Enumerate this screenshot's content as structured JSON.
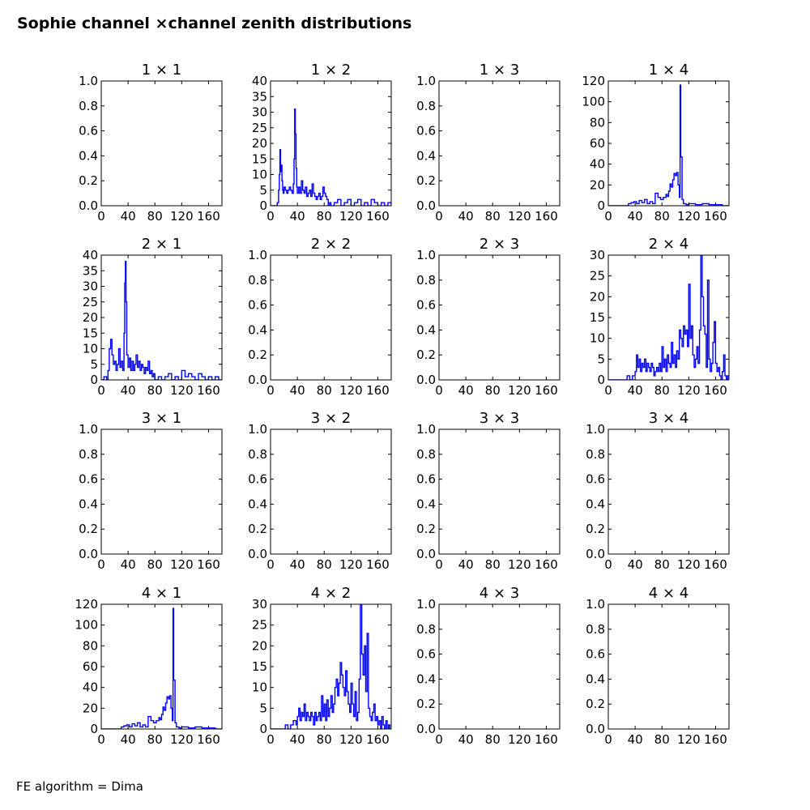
{
  "figure": {
    "title": "Sophie channel ×channel zenith distributions",
    "footer": "FE algorithm = Dima"
  },
  "chart_data": [
    {
      "title": "1 × 1",
      "type": "line",
      "step": true,
      "xlim": [
        0,
        180
      ],
      "ylim": [
        0,
        1
      ],
      "xticks": [
        0,
        40,
        80,
        120,
        160
      ],
      "yticks": [
        "0.0",
        "0.2",
        "0.4",
        "0.6",
        "0.8",
        "1.0"
      ],
      "series": []
    },
    {
      "title": "1 × 2",
      "type": "line",
      "step": true,
      "xlim": [
        0,
        180
      ],
      "ylim": [
        0,
        40
      ],
      "xticks": [
        0,
        40,
        80,
        120,
        160
      ],
      "yticks": [
        "0",
        "5",
        "10",
        "15",
        "20",
        "25",
        "30",
        "35",
        "40"
      ],
      "series": [
        {
          "color": "#0000ff",
          "x": [
            0,
            10,
            12,
            13,
            14,
            15,
            16,
            17,
            18,
            19,
            20,
            22,
            24,
            26,
            28,
            30,
            32,
            34,
            35,
            36,
            37,
            38,
            39,
            40,
            42,
            44,
            46,
            48,
            50,
            52,
            54,
            56,
            58,
            60,
            62,
            64,
            66,
            68,
            70,
            72,
            74,
            76,
            78,
            80,
            82,
            84,
            86,
            88,
            90,
            95,
            100,
            105,
            110,
            115,
            120,
            125,
            130,
            135,
            140,
            145,
            150,
            155,
            160,
            165,
            170,
            175,
            180
          ],
          "y": [
            0,
            1,
            5,
            10,
            18,
            11,
            13,
            8,
            5,
            4,
            6,
            5,
            4,
            5,
            6,
            5,
            4,
            7,
            15,
            31,
            23,
            12,
            6,
            4,
            6,
            4,
            8,
            5,
            4,
            6,
            3,
            4,
            5,
            3,
            7,
            4,
            3,
            2,
            3,
            4,
            2,
            3,
            6,
            4,
            3,
            2,
            0,
            1,
            0,
            1,
            2,
            0,
            1,
            2,
            0,
            1,
            2,
            0,
            1,
            0,
            2,
            1,
            0,
            1,
            0,
            1,
            0
          ]
        }
      ]
    },
    {
      "title": "1 × 3",
      "type": "line",
      "step": true,
      "xlim": [
        0,
        180
      ],
      "ylim": [
        0,
        1
      ],
      "xticks": [
        0,
        40,
        80,
        120,
        160
      ],
      "yticks": [
        "0.0",
        "0.2",
        "0.4",
        "0.6",
        "0.8",
        "1.0"
      ],
      "series": []
    },
    {
      "title": "1 × 4",
      "type": "line",
      "step": true,
      "xlim": [
        0,
        180
      ],
      "ylim": [
        0,
        120
      ],
      "xticks": [
        0,
        40,
        80,
        120,
        160
      ],
      "yticks": [
        "0",
        "20",
        "40",
        "60",
        "80",
        "100",
        "120"
      ],
      "series": [
        {
          "color": "#0000ff",
          "x": [
            0,
            30,
            34,
            38,
            42,
            46,
            50,
            54,
            58,
            62,
            66,
            70,
            74,
            78,
            82,
            86,
            88,
            90,
            92,
            94,
            96,
            98,
            100,
            102,
            104,
            106,
            107,
            108,
            110,
            112,
            116,
            120,
            130,
            140,
            150,
            160,
            170,
            180
          ],
          "y": [
            0,
            2,
            3,
            4,
            2,
            5,
            3,
            6,
            2,
            4,
            2,
            12,
            8,
            6,
            8,
            11,
            9,
            14,
            21,
            18,
            25,
            31,
            29,
            32,
            20,
            8,
            116,
            47,
            6,
            2,
            1,
            2,
            1,
            2,
            1,
            1,
            0,
            0
          ]
        }
      ]
    },
    {
      "title": "2 × 1",
      "type": "line",
      "step": true,
      "xlim": [
        0,
        180
      ],
      "ylim": [
        0,
        40
      ],
      "xticks": [
        0,
        40,
        80,
        120,
        160
      ],
      "yticks": [
        "0",
        "5",
        "10",
        "15",
        "20",
        "25",
        "30",
        "35",
        "40"
      ],
      "series": [
        {
          "color": "#0000ff",
          "x": [
            0,
            4,
            8,
            10,
            12,
            14,
            16,
            18,
            20,
            22,
            24,
            26,
            28,
            30,
            32,
            34,
            35,
            36,
            37,
            38,
            40,
            42,
            44,
            46,
            48,
            50,
            52,
            54,
            56,
            58,
            60,
            62,
            64,
            66,
            68,
            70,
            72,
            74,
            76,
            78,
            80,
            85,
            90,
            95,
            100,
            105,
            110,
            115,
            120,
            125,
            130,
            135,
            140,
            145,
            150,
            155,
            160,
            165,
            170,
            175,
            180
          ],
          "y": [
            0,
            1,
            0,
            3,
            10,
            13,
            8,
            5,
            6,
            3,
            5,
            10,
            4,
            6,
            3,
            15,
            31,
            38,
            25,
            8,
            4,
            7,
            3,
            6,
            3,
            5,
            8,
            4,
            6,
            3,
            5,
            4,
            2,
            4,
            3,
            6,
            2,
            3,
            1,
            2,
            0,
            1,
            0,
            1,
            2,
            0,
            1,
            0,
            3,
            1,
            2,
            1,
            0,
            2,
            1,
            0,
            1,
            0,
            1,
            0,
            0
          ]
        }
      ]
    },
    {
      "title": "2 × 2",
      "type": "line",
      "step": true,
      "xlim": [
        0,
        180
      ],
      "ylim": [
        0,
        1
      ],
      "xticks": [
        0,
        40,
        80,
        120,
        160
      ],
      "yticks": [
        "0.0",
        "0.2",
        "0.4",
        "0.6",
        "0.8",
        "1.0"
      ],
      "series": []
    },
    {
      "title": "2 × 3",
      "type": "line",
      "step": true,
      "xlim": [
        0,
        180
      ],
      "ylim": [
        0,
        1
      ],
      "xticks": [
        0,
        40,
        80,
        120,
        160
      ],
      "yticks": [
        "0.0",
        "0.2",
        "0.4",
        "0.6",
        "0.8",
        "1.0"
      ],
      "series": []
    },
    {
      "title": "2 × 4",
      "type": "line",
      "step": true,
      "xlim": [
        0,
        180
      ],
      "ylim": [
        0,
        30
      ],
      "xticks": [
        0,
        40,
        80,
        120,
        160
      ],
      "yticks": [
        "0",
        "5",
        "10",
        "15",
        "20",
        "25",
        "30"
      ],
      "series": [
        {
          "color": "#0000ff",
          "x": [
            0,
            28,
            32,
            36,
            40,
            42,
            44,
            46,
            48,
            50,
            52,
            54,
            56,
            58,
            60,
            62,
            64,
            66,
            68,
            70,
            72,
            74,
            76,
            78,
            80,
            82,
            84,
            86,
            88,
            90,
            92,
            94,
            96,
            98,
            100,
            102,
            104,
            106,
            108,
            110,
            112,
            114,
            116,
            118,
            120,
            122,
            124,
            126,
            128,
            130,
            132,
            134,
            136,
            138,
            140,
            142,
            144,
            146,
            148,
            150,
            152,
            154,
            156,
            158,
            160,
            162,
            164,
            166,
            168,
            170,
            172,
            174,
            176,
            178,
            180
          ],
          "y": [
            0,
            1,
            0,
            1,
            2,
            6,
            3,
            5,
            2,
            4,
            3,
            5,
            2,
            4,
            3,
            2,
            4,
            3,
            1,
            2,
            3,
            2,
            4,
            2,
            8,
            3,
            5,
            2,
            6,
            4,
            3,
            9,
            4,
            6,
            3,
            7,
            5,
            12,
            10,
            8,
            13,
            11,
            12,
            8,
            23,
            10,
            13,
            6,
            3,
            5,
            8,
            4,
            12,
            30,
            20,
            13,
            11,
            3,
            24,
            5,
            2,
            4,
            9,
            14,
            4,
            2,
            3,
            1,
            0,
            2,
            6,
            1,
            0,
            1,
            0
          ]
        }
      ]
    },
    {
      "title": "3 × 1",
      "type": "line",
      "step": true,
      "xlim": [
        0,
        180
      ],
      "ylim": [
        0,
        1
      ],
      "xticks": [
        0,
        40,
        80,
        120,
        160
      ],
      "yticks": [
        "0.0",
        "0.2",
        "0.4",
        "0.6",
        "0.8",
        "1.0"
      ],
      "series": []
    },
    {
      "title": "3 × 2",
      "type": "line",
      "step": true,
      "xlim": [
        0,
        180
      ],
      "ylim": [
        0,
        1
      ],
      "xticks": [
        0,
        40,
        80,
        120,
        160
      ],
      "yticks": [
        "0.0",
        "0.2",
        "0.4",
        "0.6",
        "0.8",
        "1.0"
      ],
      "series": []
    },
    {
      "title": "3 × 3",
      "type": "line",
      "step": true,
      "xlim": [
        0,
        180
      ],
      "ylim": [
        0,
        1
      ],
      "xticks": [
        0,
        40,
        80,
        120,
        160
      ],
      "yticks": [
        "0.0",
        "0.2",
        "0.4",
        "0.6",
        "0.8",
        "1.0"
      ],
      "series": []
    },
    {
      "title": "3 × 4",
      "type": "line",
      "step": true,
      "xlim": [
        0,
        180
      ],
      "ylim": [
        0,
        1
      ],
      "xticks": [
        0,
        40,
        80,
        120,
        160
      ],
      "yticks": [
        "0.0",
        "0.2",
        "0.4",
        "0.6",
        "0.8",
        "1.0"
      ],
      "series": []
    },
    {
      "title": "4 × 1",
      "type": "line",
      "step": true,
      "xlim": [
        0,
        180
      ],
      "ylim": [
        0,
        120
      ],
      "xticks": [
        0,
        40,
        80,
        120,
        160
      ],
      "yticks": [
        "0",
        "20",
        "40",
        "60",
        "80",
        "100",
        "120"
      ],
      "series": [
        {
          "color": "#0000ff",
          "x": [
            0,
            30,
            34,
            38,
            42,
            46,
            50,
            54,
            58,
            62,
            66,
            70,
            74,
            78,
            82,
            86,
            88,
            90,
            92,
            94,
            96,
            98,
            100,
            102,
            104,
            106,
            107,
            108,
            110,
            112,
            116,
            120,
            130,
            140,
            150,
            160,
            170,
            180
          ],
          "y": [
            0,
            2,
            3,
            4,
            2,
            5,
            3,
            6,
            2,
            4,
            2,
            12,
            8,
            6,
            8,
            11,
            9,
            14,
            21,
            18,
            25,
            31,
            29,
            32,
            20,
            8,
            116,
            47,
            6,
            2,
            1,
            2,
            1,
            2,
            1,
            1,
            0,
            0
          ]
        }
      ]
    },
    {
      "title": "4 × 2",
      "type": "line",
      "step": true,
      "xlim": [
        0,
        180
      ],
      "ylim": [
        0,
        30
      ],
      "xticks": [
        0,
        40,
        80,
        120,
        160
      ],
      "yticks": [
        "0",
        "5",
        "10",
        "15",
        "20",
        "25",
        "30"
      ],
      "series": [
        {
          "color": "#0000ff",
          "x": [
            0,
            22,
            26,
            30,
            34,
            38,
            40,
            42,
            44,
            46,
            48,
            50,
            52,
            54,
            56,
            58,
            60,
            62,
            64,
            66,
            68,
            70,
            72,
            74,
            76,
            78,
            80,
            82,
            84,
            86,
            88,
            90,
            92,
            94,
            96,
            98,
            100,
            102,
            104,
            106,
            108,
            110,
            112,
            114,
            116,
            118,
            120,
            122,
            124,
            126,
            128,
            130,
            132,
            134,
            136,
            138,
            140,
            142,
            144,
            146,
            148,
            150,
            152,
            154,
            156,
            158,
            160,
            162,
            164,
            166,
            168,
            170,
            172,
            174,
            176,
            178,
            180
          ],
          "y": [
            0,
            1,
            0,
            1,
            2,
            1,
            3,
            5,
            2,
            4,
            3,
            6,
            2,
            4,
            3,
            2,
            4,
            3,
            1,
            4,
            2,
            3,
            4,
            2,
            8,
            3,
            6,
            2,
            7,
            3,
            5,
            8,
            4,
            6,
            10,
            12,
            8,
            11,
            16,
            13,
            10,
            8,
            14,
            9,
            6,
            4,
            11,
            6,
            3,
            9,
            2,
            4,
            12,
            30,
            18,
            13,
            20,
            9,
            23,
            5,
            3,
            2,
            4,
            6,
            2,
            3,
            1,
            2,
            0,
            3,
            1,
            0,
            2,
            0,
            1,
            0,
            0
          ]
        }
      ]
    },
    {
      "title": "4 × 3",
      "type": "line",
      "step": true,
      "xlim": [
        0,
        180
      ],
      "ylim": [
        0,
        1
      ],
      "xticks": [
        0,
        40,
        80,
        120,
        160
      ],
      "yticks": [
        "0.0",
        "0.2",
        "0.4",
        "0.6",
        "0.8",
        "1.0"
      ],
      "series": []
    },
    {
      "title": "4 × 4",
      "type": "line",
      "step": true,
      "xlim": [
        0,
        180
      ],
      "ylim": [
        0,
        1
      ],
      "xticks": [
        0,
        40,
        80,
        120,
        160
      ],
      "yticks": [
        "0.0",
        "0.2",
        "0.4",
        "0.6",
        "0.8",
        "1.0"
      ],
      "series": []
    }
  ]
}
